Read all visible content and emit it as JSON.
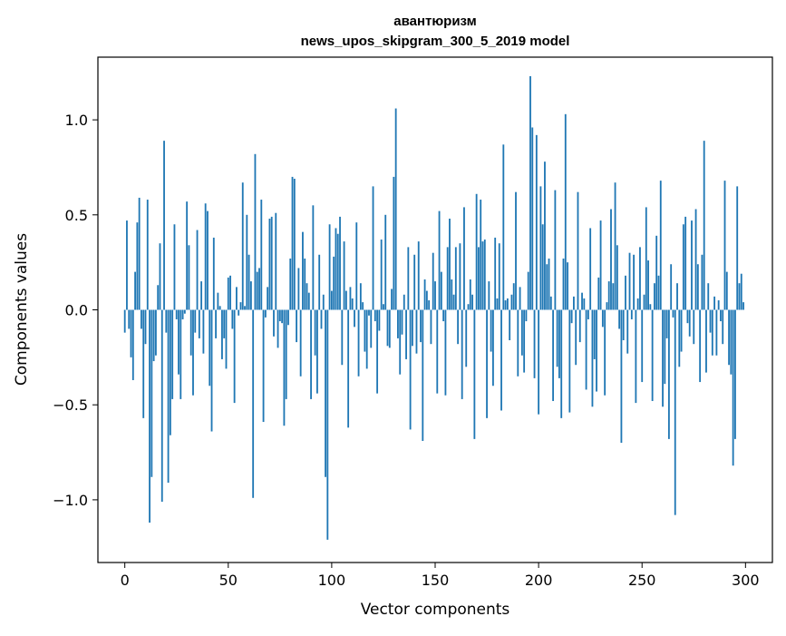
{
  "chart_data": {
    "type": "bar",
    "title": "авантюризм",
    "subtitle": "news_upos_skipgram_300_5_2019 model",
    "xlabel": "Vector components",
    "ylabel": "Components values",
    "xlim": [
      -13,
      313
    ],
    "ylim": [
      -1.33,
      1.33
    ],
    "xticks": [
      0,
      50,
      100,
      150,
      200,
      250,
      300
    ],
    "xtick_labels": [
      "0",
      "50",
      "100",
      "150",
      "200",
      "250",
      "300"
    ],
    "yticks": [
      -1.0,
      -0.5,
      0.0,
      0.5,
      1.0
    ],
    "ytick_labels": [
      "−1.0",
      "−0.5",
      "0.0",
      "0.5",
      "1.0"
    ],
    "grid": false,
    "bar_color": "#1f77b4",
    "x": "0..299 (one bar per vector component index)",
    "values": [
      -0.12,
      0.47,
      -0.1,
      -0.25,
      -0.37,
      0.2,
      0.46,
      0.59,
      -0.1,
      -0.57,
      -0.18,
      0.58,
      -1.12,
      -0.88,
      -0.27,
      -0.24,
      0.13,
      0.35,
      -1.01,
      0.89,
      -0.12,
      -0.91,
      -0.66,
      -0.47,
      0.45,
      -0.05,
      -0.34,
      -0.47,
      -0.05,
      -0.02,
      0.57,
      0.34,
      -0.24,
      -0.45,
      -0.12,
      0.42,
      -0.15,
      0.15,
      -0.23,
      0.56,
      0.52,
      -0.4,
      -0.64,
      0.38,
      -0.15,
      0.09,
      0.02,
      -0.26,
      -0.15,
      -0.31,
      0.17,
      0.18,
      -0.1,
      -0.49,
      0.12,
      -0.03,
      0.04,
      0.67,
      0.02,
      0.5,
      0.29,
      0.15,
      -0.99,
      0.82,
      0.2,
      0.22,
      0.58,
      -0.59,
      -0.04,
      0.12,
      0.48,
      0.49,
      -0.14,
      0.51,
      -0.2,
      -0.06,
      -0.07,
      -0.61,
      -0.47,
      -0.08,
      0.27,
      0.7,
      0.69,
      -0.17,
      0.22,
      -0.35,
      0.41,
      0.27,
      0.14,
      0.09,
      -0.47,
      0.55,
      -0.24,
      -0.44,
      0.29,
      -0.1,
      0.08,
      -0.88,
      -1.21,
      0.45,
      0.1,
      0.28,
      0.43,
      0.4,
      0.49,
      -0.29,
      0.36,
      0.1,
      -0.62,
      0.12,
      0.06,
      -0.09,
      0.46,
      -0.35,
      0.14,
      0.04,
      -0.22,
      -0.31,
      -0.03,
      -0.2,
      0.65,
      -0.06,
      -0.44,
      -0.11,
      0.37,
      0.03,
      0.5,
      -0.19,
      -0.2,
      0.11,
      0.7,
      1.06,
      -0.15,
      -0.34,
      -0.13,
      0.08,
      -0.26,
      0.33,
      -0.63,
      -0.19,
      0.29,
      -0.23,
      0.36,
      -0.17,
      -0.69,
      0.16,
      0.1,
      0.05,
      -0.18,
      0.3,
      0.15,
      -0.44,
      0.52,
      0.2,
      -0.06,
      -0.45,
      0.33,
      0.48,
      0.16,
      0.08,
      0.33,
      -0.18,
      0.35,
      -0.47,
      0.54,
      -0.3,
      0.03,
      0.16,
      0.08,
      -0.68,
      0.61,
      0.33,
      0.58,
      0.36,
      0.37,
      -0.57,
      0.15,
      -0.22,
      -0.4,
      0.38,
      0.06,
      0.35,
      -0.53,
      0.87,
      0.05,
      0.06,
      -0.16,
      0.08,
      0.14,
      0.62,
      -0.35,
      0.12,
      -0.24,
      -0.33,
      -0.06,
      0.2,
      1.23,
      0.96,
      -0.36,
      0.92,
      -0.55,
      0.65,
      0.45,
      0.78,
      0.24,
      0.27,
      0.07,
      -0.48,
      0.63,
      -0.3,
      -0.36,
      -0.57,
      0.27,
      1.03,
      0.25,
      -0.54,
      -0.07,
      0.07,
      -0.29,
      0.62,
      -0.17,
      0.09,
      0.06,
      -0.42,
      -0.05,
      0.43,
      -0.51,
      -0.26,
      -0.43,
      0.17,
      0.47,
      -0.09,
      -0.45,
      0.04,
      0.15,
      0.53,
      0.14,
      0.67,
      0.34,
      -0.1,
      -0.7,
      -0.16,
      0.18,
      -0.23,
      0.3,
      -0.05,
      0.29,
      -0.49,
      0.06,
      0.33,
      -0.38,
      0.08,
      0.54,
      0.26,
      0.03,
      -0.48,
      0.14,
      0.39,
      0.18,
      0.68,
      -0.51,
      -0.39,
      -0.15,
      -0.68,
      0.24,
      -0.04,
      -1.08,
      0.14,
      -0.3,
      -0.22,
      0.45,
      0.49,
      -0.07,
      -0.14,
      0.47,
      -0.18,
      0.53,
      0.24,
      -0.38,
      0.29,
      0.89,
      -0.33,
      0.14,
      -0.12,
      -0.24,
      0.07,
      -0.24,
      0.05,
      -0.06,
      -0.18,
      0.68,
      0.2,
      -0.29,
      -0.34,
      -0.82,
      -0.68,
      0.65,
      0.14,
      0.19,
      0.04
    ]
  }
}
